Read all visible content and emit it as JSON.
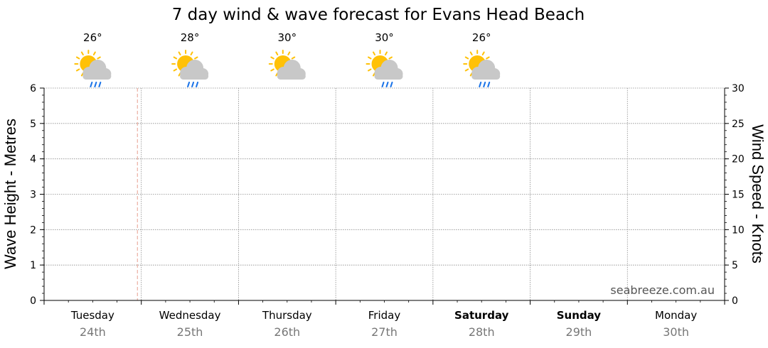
{
  "title": "7 day wind & wave forecast for Evans Head Beach",
  "watermark": "seabreeze.com.au",
  "chart_data": {
    "type": "line",
    "title": "7 day wind & wave forecast for Evans Head Beach",
    "left_axis": {
      "label": "Wave Height - Metres",
      "min": 0,
      "max": 6,
      "ticks": [
        "0",
        "1",
        "2",
        "3",
        "4",
        "5",
        "6"
      ]
    },
    "right_axis": {
      "label": "Wind Speed - Knots",
      "min": 0,
      "max": 30,
      "ticks": [
        "0",
        "5",
        "10",
        "15",
        "20",
        "25",
        "30"
      ]
    },
    "grid": true,
    "series": [],
    "now_marker_day_fraction": 0.96,
    "days": [
      {
        "name": "Tuesday",
        "date": "24th",
        "bold": false
      },
      {
        "name": "Wednesday",
        "date": "25th",
        "bold": false
      },
      {
        "name": "Thursday",
        "date": "26th",
        "bold": false
      },
      {
        "name": "Friday",
        "date": "27th",
        "bold": false
      },
      {
        "name": "Saturday",
        "date": "28th",
        "bold": true
      },
      {
        "name": "Sunday",
        "date": "29th",
        "bold": true
      },
      {
        "name": "Monday",
        "date": "30th",
        "bold": false
      }
    ],
    "weather": [
      {
        "temp": "26°",
        "icon": "sun-cloud-rain-icon"
      },
      {
        "temp": "28°",
        "icon": "sun-cloud-rain-icon"
      },
      {
        "temp": "30°",
        "icon": "sun-cloud-icon"
      },
      {
        "temp": "30°",
        "icon": "sun-cloud-rain-icon"
      },
      {
        "temp": "26°",
        "icon": "sun-cloud-rain-icon"
      }
    ],
    "colors": {
      "grid": "#8c8c8c",
      "now_marker": "#e8a090",
      "sun": "#ffc107",
      "cloud": "#c8c8c8",
      "rain": "#1a73e8",
      "date": "#777777"
    }
  }
}
